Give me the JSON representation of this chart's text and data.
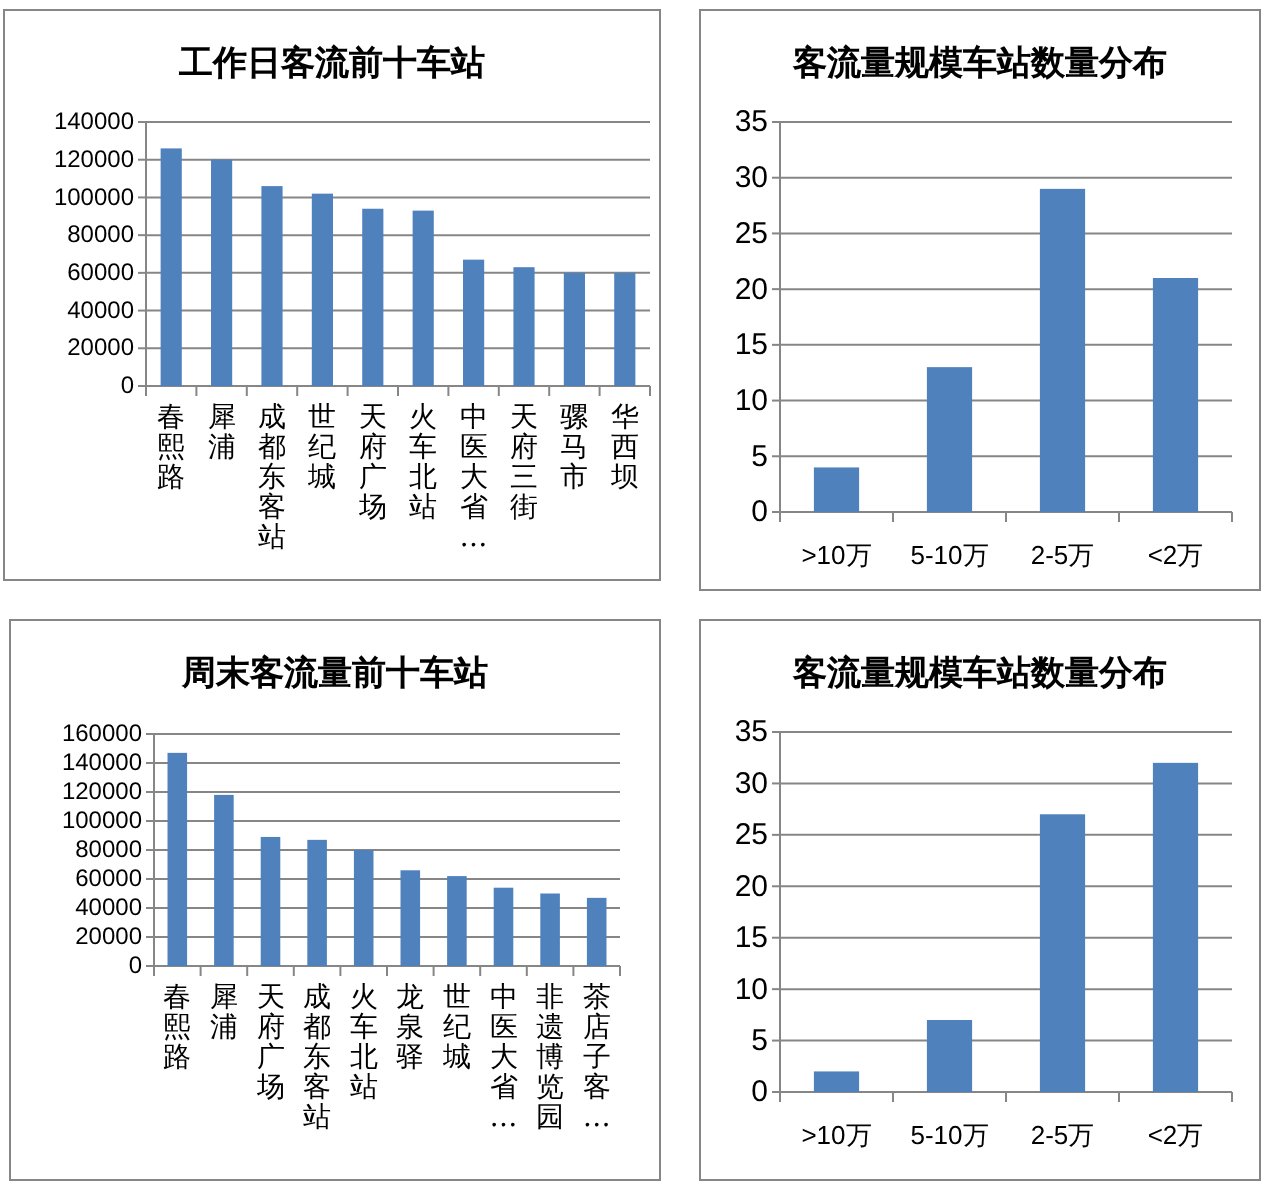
{
  "chart_data": [
    {
      "type": "bar",
      "title": "工作日客流前十车站",
      "categories": [
        "春熙路",
        "犀浦",
        "成都东客站",
        "世纪城",
        "天府广场",
        "火车北站",
        "中医大省…",
        "天府三街",
        "骡马市",
        "华西坝"
      ],
      "values": [
        126000,
        120000,
        106000,
        102000,
        94000,
        93000,
        67000,
        63000,
        60000,
        60000
      ],
      "color": "#4f81bd",
      "ylim": [
        0,
        140000
      ],
      "yticks": [
        0,
        20000,
        40000,
        60000,
        80000,
        100000,
        120000,
        140000
      ],
      "grid": "y"
    },
    {
      "type": "bar",
      "title": "客流量规模车站数量分布",
      "categories": [
        ">10万",
        "5-10万",
        "2-5万",
        "<2万"
      ],
      "values": [
        4,
        13,
        29,
        21
      ],
      "color": "#4f81bd",
      "ylim": [
        0,
        35
      ],
      "yticks": [
        0,
        5,
        10,
        15,
        20,
        25,
        30,
        35
      ],
      "grid": "y"
    },
    {
      "type": "bar",
      "title": "周末客流量前十车站",
      "categories": [
        "春熙路",
        "犀浦",
        "天府广场",
        "成都东客站",
        "火车北站",
        "龙泉驿",
        "世纪城",
        "中医大省…",
        "非遗博览园",
        "茶店子客…"
      ],
      "values": [
        147000,
        118000,
        89000,
        87000,
        80000,
        66000,
        62000,
        54000,
        50000,
        47000
      ],
      "color": "#4f81bd",
      "ylim": [
        0,
        160000
      ],
      "yticks": [
        0,
        20000,
        40000,
        60000,
        80000,
        100000,
        120000,
        140000,
        160000
      ],
      "grid": "y"
    },
    {
      "type": "bar",
      "title": "客流量规模车站数量分布",
      "categories": [
        ">10万",
        "5-10万",
        "2-5万",
        "<2万"
      ],
      "values": [
        2,
        7,
        27,
        32
      ],
      "color": "#4f81bd",
      "ylim": [
        0,
        35
      ],
      "yticks": [
        0,
        5,
        10,
        15,
        20,
        25,
        30,
        35
      ],
      "grid": "y"
    }
  ]
}
